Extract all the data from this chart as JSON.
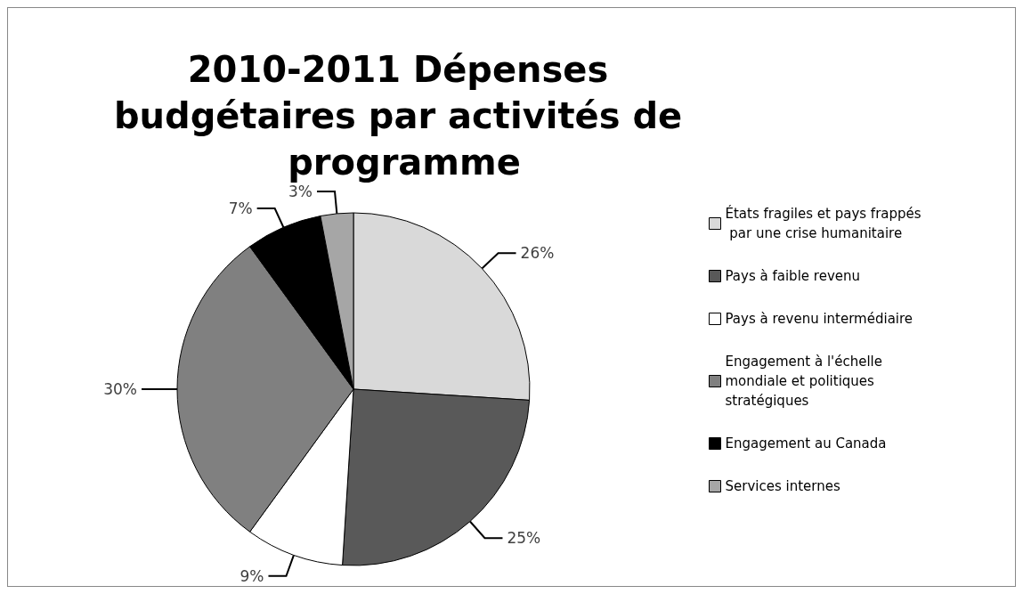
{
  "chart_data": {
    "type": "pie",
    "title": "2010-2011 Dépenses budgétaires par activités de programme",
    "categories": [
      "États fragiles et pays frappés par une crise humanitaire",
      "Pays à faible revenu",
      "Pays à revenu intermédiaire",
      "Engagement à l'échelle  mondiale et politiques  stratégiques",
      "Engagement au Canada",
      "Services internes"
    ],
    "values": [
      26,
      25,
      9,
      30,
      7,
      3
    ],
    "value_labels": [
      "26%",
      "25%",
      "9%",
      "30%",
      "7%",
      "3%"
    ],
    "colors": [
      "#d9d9d9",
      "#595959",
      "#ffffff",
      "#808080",
      "#000000",
      "#a6a6a6"
    ],
    "legend": "right"
  }
}
